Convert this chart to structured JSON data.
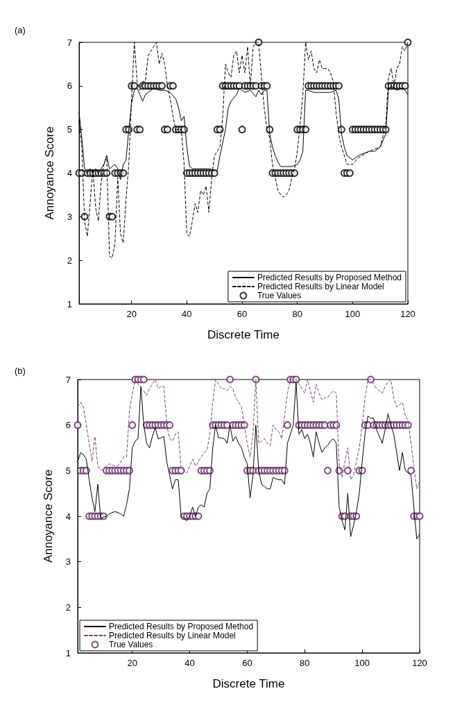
{
  "chart_data": [
    {
      "type": "line",
      "title": "(a)",
      "xlabel": "Discrete Time",
      "ylabel": "Annoyance Score",
      "x": [
        1,
        2,
        3,
        4,
        5,
        6,
        7,
        8,
        9,
        10,
        11,
        12,
        13,
        14,
        15,
        16,
        17,
        18,
        19,
        20,
        21,
        22,
        23,
        24,
        25,
        26,
        27,
        28,
        29,
        30,
        31,
        32,
        33,
        34,
        35,
        36,
        37,
        38,
        39,
        40,
        41,
        42,
        43,
        44,
        45,
        46,
        47,
        48,
        49,
        50,
        51,
        52,
        53,
        54,
        55,
        56,
        57,
        58,
        59,
        60,
        61,
        62,
        63,
        64,
        65,
        66,
        67,
        68,
        69,
        70,
        71,
        72,
        73,
        74,
        75,
        76,
        77,
        78,
        79,
        80,
        81,
        82,
        83,
        84,
        85,
        86,
        87,
        88,
        89,
        90,
        91,
        92,
        93,
        94,
        95,
        96,
        97,
        98,
        99,
        100,
        101,
        102,
        103,
        104,
        105,
        106,
        107,
        108,
        109,
        110,
        111,
        112,
        113,
        114,
        115,
        116,
        117,
        118,
        119,
        120
      ],
      "xlim": [
        1,
        120
      ],
      "xticks": [
        20,
        40,
        60,
        80,
        100,
        120
      ],
      "ylim": [
        1,
        7
      ],
      "yticks": [
        1,
        2,
        3,
        4,
        5,
        6,
        7
      ],
      "grid": false,
      "legend": "bottom right",
      "series": [
        {
          "name": "Predicted Results by Proposed Method",
          "color": "#000000",
          "line_style": "solid",
          "marker": "none",
          "x": [
            1,
            2,
            3,
            4,
            5,
            6,
            7,
            8,
            9,
            10,
            11,
            12,
            13,
            14,
            15,
            16,
            17,
            18,
            19,
            20,
            21,
            22,
            23,
            24,
            25,
            26,
            28,
            30,
            32,
            34,
            36,
            37,
            38,
            39,
            40,
            41,
            42,
            45,
            48,
            51,
            52,
            54,
            55,
            56,
            58,
            59,
            61,
            63,
            65,
            66,
            67,
            68,
            69,
            70,
            71,
            72,
            73,
            74,
            76,
            78,
            80,
            81,
            82,
            83,
            84,
            86,
            88,
            90,
            92,
            94,
            95,
            96,
            97,
            98,
            100,
            102,
            104,
            106,
            108,
            110,
            112,
            113,
            114,
            116,
            118,
            119,
            120
          ],
          "values": [
            5.4,
            4.8,
            4.1,
            4.0,
            4.1,
            4.0,
            4.1,
            4.0,
            4.1,
            4.2,
            4.4,
            4.1,
            4.15,
            4.2,
            4.1,
            3.85,
            4.2,
            4.3,
            5.0,
            5.6,
            5.9,
            5.95,
            5.8,
            5.65,
            5.8,
            5.85,
            5.95,
            5.9,
            5.9,
            5.85,
            5.7,
            5.5,
            5.2,
            5.3,
            4.6,
            4.15,
            4.1,
            4.1,
            4.1,
            4.05,
            4.4,
            5.0,
            5.5,
            5.65,
            5.8,
            5.95,
            5.85,
            5.9,
            5.75,
            5.9,
            5.8,
            5.9,
            5.9,
            4.9,
            4.6,
            4.4,
            4.25,
            4.15,
            4.15,
            4.15,
            4.2,
            4.3,
            4.5,
            5.9,
            5.9,
            5.85,
            5.85,
            5.85,
            5.85,
            5.9,
            5.7,
            4.9,
            4.6,
            4.4,
            4.3,
            4.4,
            4.45,
            4.5,
            4.5,
            4.6,
            4.9,
            5.9,
            6.0,
            5.9,
            5.95,
            5.9,
            5.8
          ]
        },
        {
          "name": "Predicted Results by Linear Model",
          "color": "#000000",
          "line_style": "dashed",
          "marker": "none",
          "x": [
            1,
            2,
            3,
            4,
            5,
            6,
            7,
            8,
            9,
            10,
            11,
            12,
            13,
            14,
            15,
            16,
            17,
            18,
            19,
            20,
            21,
            22,
            23,
            24,
            25,
            26,
            27,
            28,
            29,
            30,
            31,
            32,
            33,
            34,
            35,
            36,
            38,
            39,
            40,
            41,
            42,
            43,
            44,
            45,
            46,
            47,
            48,
            49,
            50,
            52,
            53,
            54,
            55,
            56,
            57,
            58,
            59,
            60,
            61,
            62,
            63,
            64,
            65,
            66,
            67,
            68,
            69,
            70,
            71,
            72,
            73,
            74,
            75,
            76,
            77,
            78,
            79,
            80,
            81,
            82,
            83,
            84,
            85,
            86,
            87,
            88,
            89,
            90,
            91,
            92,
            93,
            94,
            95,
            96,
            97,
            98,
            100,
            102,
            106,
            110,
            112,
            113,
            114,
            115,
            116,
            117,
            118,
            119,
            120
          ],
          "values": [
            5.2,
            4.6,
            2.9,
            2.55,
            3.3,
            4.1,
            3.2,
            2.9,
            3.8,
            4.2,
            4.4,
            2.1,
            2.05,
            2.4,
            3.9,
            2.6,
            2.4,
            3.4,
            4.2,
            5.7,
            7.0,
            6.1,
            5.9,
            6.1,
            6.1,
            6.7,
            6.8,
            6.9,
            7.0,
            6.5,
            6.75,
            6.5,
            6.0,
            5.7,
            5.3,
            5.0,
            5.0,
            4.2,
            2.6,
            2.55,
            2.9,
            3.3,
            3.1,
            3.6,
            3.5,
            3.7,
            3.1,
            3.9,
            4.4,
            4.6,
            5.3,
            6.5,
            6.3,
            6.2,
            6.7,
            6.8,
            6.3,
            6.7,
            6.3,
            6.9,
            6.0,
            6.9,
            7.0,
            7.0,
            6.2,
            5.5,
            5.0,
            4.8,
            4.2,
            3.9,
            3.6,
            3.5,
            3.45,
            3.5,
            3.6,
            3.9,
            4.1,
            4.5,
            5.1,
            5.8,
            7.0,
            6.6,
            6.8,
            6.4,
            6.3,
            6.6,
            6.4,
            6.4,
            6.4,
            6.3,
            6.1,
            5.4,
            4.9,
            4.6,
            4.4,
            4.2,
            4.2,
            4.35,
            4.5,
            4.6,
            5.1,
            6.2,
            6.4,
            6.0,
            6.4,
            6.5,
            6.9,
            6.8,
            7.0
          ]
        },
        {
          "name": "True Values",
          "type": "scatter",
          "color": "#000000",
          "marker": "circle",
          "values": [
            4,
            4,
            3,
            4,
            4,
            4,
            4,
            4,
            4,
            4,
            4,
            3,
            3,
            4,
            4,
            4,
            4,
            5,
            5,
            6,
            6,
            5,
            5,
            6,
            6,
            6,
            6,
            6,
            6,
            6,
            6,
            5,
            5,
            6,
            6,
            5,
            5,
            5,
            5,
            4,
            4,
            4,
            4,
            4,
            4,
            4,
            4,
            4,
            4,
            4,
            5,
            5,
            6,
            6,
            6,
            6,
            6,
            6,
            6,
            5,
            6,
            6,
            6,
            6,
            6,
            7,
            6,
            6,
            6,
            5,
            4,
            4,
            4,
            4,
            4,
            4,
            4,
            4,
            4,
            5,
            5,
            5,
            5,
            6,
            6,
            6,
            6,
            6,
            6,
            6,
            6,
            6,
            6,
            6,
            6,
            5,
            4,
            4,
            4,
            5,
            5,
            5,
            5,
            5,
            5,
            5,
            5,
            5,
            5,
            5,
            5,
            5,
            6,
            6,
            6,
            6,
            6,
            6,
            6,
            7
          ]
        }
      ]
    },
    {
      "type": "line",
      "title": "(b)",
      "xlabel": "Discrete Time",
      "ylabel": "Annoyance Score",
      "x": [
        1,
        2,
        3,
        4,
        5,
        6,
        7,
        8,
        9,
        10,
        11,
        12,
        13,
        14,
        15,
        16,
        17,
        18,
        19,
        20,
        21,
        22,
        23,
        24,
        25,
        26,
        27,
        28,
        29,
        30,
        31,
        32,
        33,
        34,
        35,
        36,
        37,
        38,
        39,
        40,
        41,
        42,
        43,
        44,
        45,
        46,
        47,
        48,
        49,
        50,
        51,
        52,
        53,
        54,
        55,
        56,
        57,
        58,
        59,
        60,
        61,
        62,
        63,
        64,
        65,
        66,
        67,
        68,
        69,
        70,
        71,
        72,
        73,
        74,
        75,
        76,
        77,
        78,
        79,
        80,
        81,
        82,
        83,
        84,
        85,
        86,
        87,
        88,
        89,
        90,
        91,
        92,
        93,
        94,
        95,
        96,
        97,
        98,
        99,
        100,
        101,
        102,
        103,
        104,
        105,
        106,
        107,
        108,
        109,
        110,
        111,
        112,
        113,
        114,
        115,
        116,
        117,
        118,
        119,
        120
      ],
      "xlim": [
        1,
        120
      ],
      "xticks": [
        20,
        40,
        60,
        80,
        100,
        120
      ],
      "ylim": [
        1,
        7
      ],
      "yticks": [
        1,
        2,
        3,
        4,
        5,
        6,
        7
      ],
      "grid": false,
      "legend": "bottom left",
      "series": [
        {
          "name": "Predicted Results by Proposed Method",
          "color": "#000000",
          "line_style": "solid",
          "marker": "none",
          "values": [
            5.2,
            5.4,
            5.35,
            5.25,
            4.8,
            4.4,
            4.1,
            4.7,
            3.95,
            3.98,
            4.0,
            4.05,
            4.08,
            4.1,
            4.08,
            4.05,
            4.0,
            4.25,
            4.6,
            5.5,
            5.65,
            5.7,
            6.85,
            6.0,
            5.6,
            5.5,
            5.75,
            5.95,
            5.7,
            5.72,
            5.75,
            5.2,
            4.9,
            4.6,
            4.8,
            4.8,
            4.0,
            3.95,
            3.9,
            4.0,
            4.2,
            4.0,
            4.2,
            4.25,
            4.2,
            4.5,
            4.6,
            5.5,
            6.0,
            5.72,
            5.72,
            5.7,
            5.6,
            6.0,
            5.65,
            5.75,
            5.6,
            5.5,
            5.3,
            5.15,
            4.4,
            4.9,
            6.0,
            5.0,
            4.7,
            4.65,
            4.6,
            4.6,
            4.85,
            4.82,
            4.8,
            4.8,
            4.7,
            5.6,
            5.8,
            6.0,
            6.95,
            5.8,
            5.9,
            5.7,
            5.8,
            5.6,
            5.3,
            5.85,
            5.6,
            5.4,
            5.5,
            5.55,
            5.65,
            5.7,
            5.6,
            4.2,
            3.9,
            3.7,
            4.5,
            3.55,
            3.8,
            4.1,
            4.5,
            5.2,
            5.8,
            6.2,
            6.15,
            6.15,
            5.9,
            5.75,
            5.6,
            5.9,
            6.25,
            6.0,
            5.8,
            5.4,
            5.0,
            5.4,
            5.0,
            4.95,
            4.9,
            4.2,
            3.5,
            3.6
          ]
        },
        {
          "name": "Predicted Results by Linear Model",
          "color": "#7b3f7b",
          "line_style": "dashed",
          "marker": "none",
          "values": [
            6.4,
            6.5,
            6.4,
            6.0,
            5.6,
            5.2,
            5.75,
            5.1,
            5.0,
            5.05,
            5.1,
            5.15,
            5.12,
            5.1,
            5.1,
            5.2,
            5.3,
            5.3,
            6.3,
            6.7,
            7.0,
            6.9,
            6.8,
            6.75,
            6.65,
            6.8,
            6.9,
            7.0,
            6.8,
            6.85,
            6.85,
            6.0,
            5.7,
            5.65,
            5.8,
            5.85,
            5.05,
            5.0,
            4.95,
            5.1,
            5.25,
            5.1,
            5.2,
            5.3,
            5.4,
            5.45,
            5.8,
            6.5,
            7.0,
            6.9,
            6.8,
            6.8,
            6.75,
            6.85,
            6.8,
            6.6,
            6.5,
            6.4,
            6.0,
            5.6,
            5.3,
            5.8,
            7.0,
            5.6,
            5.65,
            5.7,
            5.6,
            5.55,
            6.0,
            5.9,
            5.85,
            5.7,
            6.2,
            6.7,
            7.0,
            7.0,
            7.0,
            6.9,
            6.8,
            6.7,
            7.0,
            6.75,
            6.5,
            6.9,
            6.7,
            6.55,
            6.6,
            6.6,
            6.7,
            6.75,
            6.7,
            5.1,
            4.85,
            5.2,
            5.5,
            4.8,
            4.9,
            5.2,
            5.5,
            6.0,
            6.6,
            7.0,
            7.0,
            6.9,
            6.8,
            6.75,
            6.7,
            6.85,
            6.95,
            7.0,
            6.6,
            6.4,
            6.45,
            6.5,
            6.2,
            6.1,
            5.6,
            5.1,
            4.6,
            4.75
          ]
        },
        {
          "name": "True Values",
          "type": "scatter",
          "color": "#5e2160",
          "marker": "circle",
          "values": [
            6,
            5,
            5,
            5,
            4,
            4,
            4,
            4,
            4,
            4,
            5,
            5,
            5,
            5,
            5,
            5,
            5,
            5,
            5,
            6,
            7,
            7,
            7,
            7,
            6,
            6,
            6,
            6,
            6,
            6,
            6,
            6,
            6,
            5,
            5,
            5,
            5,
            4,
            4,
            4,
            4,
            4,
            4,
            5,
            5,
            5,
            5,
            6,
            6,
            6,
            6,
            6,
            6,
            7,
            6,
            6,
            6,
            6,
            6,
            5,
            5,
            5,
            7,
            5,
            5,
            5,
            5,
            5,
            5,
            5,
            5,
            5,
            5,
            6,
            7,
            7,
            7,
            6,
            6,
            6,
            6,
            6,
            6,
            6,
            6,
            6,
            6,
            5,
            6,
            6,
            6,
            5,
            4,
            4,
            5,
            4,
            4,
            4,
            5,
            5,
            6,
            6,
            7,
            6,
            6,
            6,
            6,
            6,
            6,
            6,
            6,
            6,
            6,
            6,
            6,
            6,
            5,
            4,
            4,
            4
          ]
        }
      ]
    }
  ]
}
